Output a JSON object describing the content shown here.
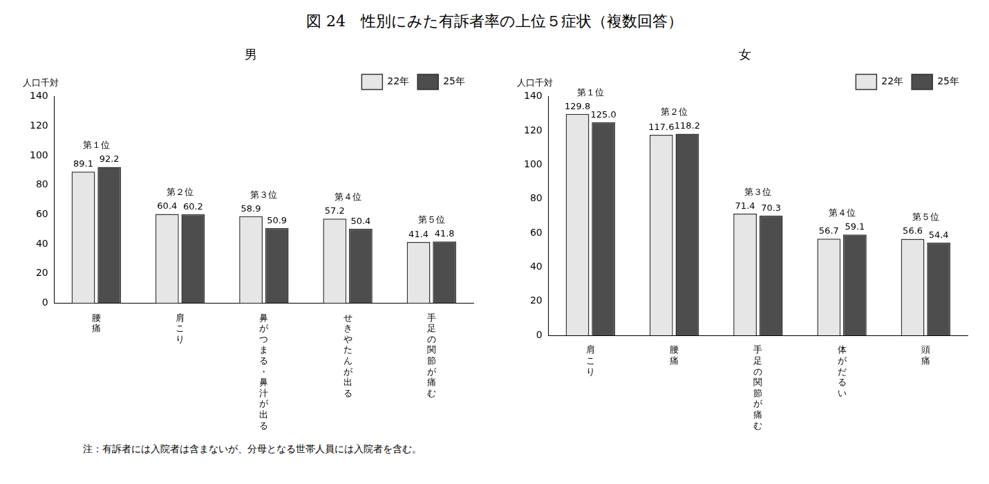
{
  "title": "図 24　性別にみた有訴者率の上位５症状（複数回答）",
  "note": "注：有訴者には入院者は含まないが、分母となる世帯人員には入院者を含む。",
  "chart_data": [
    {
      "type": "bar",
      "title": "男",
      "y_label": "人口千対",
      "categories": [
        "腰痛",
        "肩こり",
        "鼻がつまる・鼻汁が出る",
        "せきやたんが出る",
        "手足の関節が痛む"
      ],
      "annotations": [
        "第１位",
        "第２位",
        "第３位",
        "第４位",
        "第５位"
      ],
      "series": [
        {
          "name": "22年",
          "color": "#e6e6e6",
          "values": [
            89.1,
            60.4,
            58.9,
            57.2,
            41.4
          ]
        },
        {
          "name": "25年",
          "color": "#4d4d4d",
          "values": [
            92.2,
            60.2,
            50.9,
            50.4,
            41.8
          ]
        }
      ],
      "ylim": [
        0,
        140
      ],
      "yticks": [
        0,
        20,
        40,
        60,
        80,
        100,
        120,
        140
      ],
      "grid": false,
      "legend": "upper right",
      "data_labels": true
    },
    {
      "type": "bar",
      "title": "女",
      "y_label": "人口千対",
      "categories": [
        "肩こり",
        "腰痛",
        "手足の関節が痛む",
        "体がだるい",
        "頭痛"
      ],
      "annotations": [
        "第１位",
        "第２位",
        "第３位",
        "第４位",
        "第５位"
      ],
      "series": [
        {
          "name": "22年",
          "color": "#e6e6e6",
          "values": [
            129.8,
            117.6,
            71.4,
            56.7,
            56.6
          ]
        },
        {
          "name": "25年",
          "color": "#4d4d4d",
          "values": [
            125.0,
            118.2,
            70.3,
            59.1,
            54.4
          ],
          "value_labels": [
            "125.0",
            "118.2",
            "70.3",
            "59.1",
            "54.4"
          ]
        }
      ],
      "ylim": [
        0,
        140
      ],
      "yticks": [
        0,
        20,
        40,
        60,
        80,
        100,
        120,
        140
      ],
      "grid": false,
      "legend": "upper right",
      "data_labels": true
    }
  ]
}
